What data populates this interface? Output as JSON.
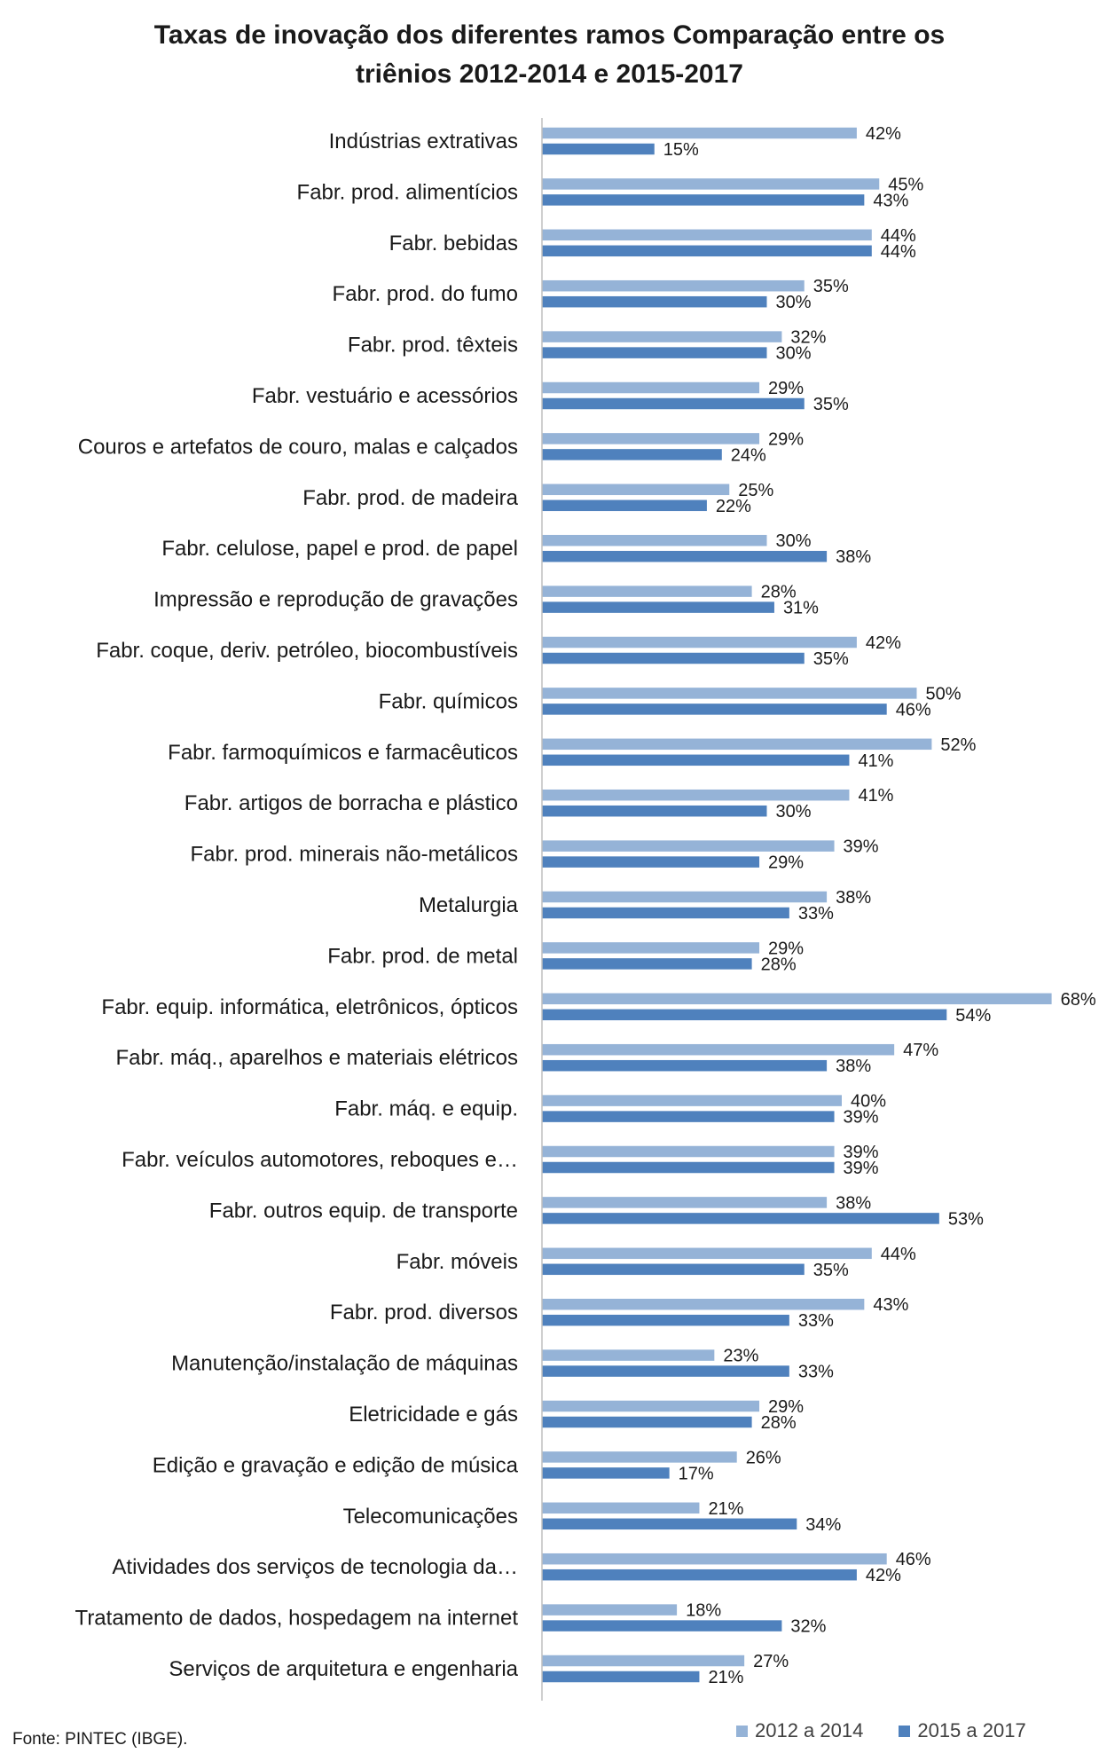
{
  "chart_data": {
    "type": "bar",
    "orientation": "horizontal",
    "title_lines": [
      "Taxas de inovação dos diferentes ramos Comparação entre os",
      "triênios 2012-2014 e 2015-2017"
    ],
    "categories": [
      "Indústrias extrativas",
      "Fabr. prod. alimentícios",
      "Fabr. bebidas",
      "Fabr. prod. do fumo",
      "Fabr. prod. têxteis",
      "Fabr. vestuário e acessórios",
      "Couros e artefatos de couro, malas e calçados",
      "Fabr. prod. de madeira",
      "Fabr. celulose, papel e prod. de papel",
      "Impressão e reprodução de gravações",
      "Fabr. coque, deriv. petróleo, biocombustíveis",
      "Fabr. químicos",
      "Fabr. farmoquímicos e farmacêuticos",
      "Fabr. artigos de borracha e plástico",
      "Fabr. prod. minerais não-metálicos",
      "Metalurgia",
      "Fabr. prod. de metal",
      "Fabr. equip. informática, eletrônicos, ópticos",
      "Fabr. máq., aparelhos e materiais elétricos",
      "Fabr. máq. e equip.",
      "Fabr. veículos automotores, reboques e…",
      "Fabr. outros equip. de transporte",
      "Fabr. móveis",
      "Fabr. prod. diversos",
      "Manutenção/instalação de máquinas",
      "Eletricidade e gás",
      "Edição e gravação e edição de música",
      "Telecomunicações",
      "Atividades dos serviços de tecnologia da…",
      "Tratamento de dados, hospedagem na internet",
      "Serviços de arquitetura e engenharia"
    ],
    "series": [
      {
        "name": "2012 a 2014",
        "color": "#95b3d7",
        "values": [
          42,
          45,
          44,
          35,
          32,
          29,
          29,
          25,
          30,
          28,
          42,
          50,
          52,
          41,
          39,
          38,
          29,
          68,
          47,
          40,
          39,
          38,
          44,
          43,
          23,
          29,
          26,
          21,
          46,
          18,
          27
        ],
        "labels": [
          "42%",
          "45%",
          "44%",
          "35%",
          "32%",
          "29%",
          "29%",
          "25%",
          "30%",
          "28%",
          "42%",
          "50%",
          "52%",
          "41%",
          "39%",
          "38%",
          "29%",
          "68%",
          "47%",
          "40%",
          "39%",
          "38%",
          "44%",
          "43%",
          "23%",
          "29%",
          "26%",
          "21%",
          "46%",
          "18%",
          "27%"
        ]
      },
      {
        "name": "2015 a 2017",
        "color": "#4f81bd",
        "values": [
          15,
          43,
          44,
          30,
          30,
          35,
          24,
          22,
          38,
          31,
          35,
          46,
          41,
          30,
          29,
          33,
          28,
          54,
          38,
          39,
          39,
          53,
          35,
          33,
          33,
          28,
          17,
          34,
          42,
          32,
          21
        ],
        "labels": [
          "15%",
          "43%",
          "44%",
          "30%",
          "30%",
          "35%",
          "24%",
          "22%",
          "38%",
          "31%",
          "35%",
          "46%",
          "41%",
          "30%",
          "29%",
          "33%",
          "28%",
          "54%",
          "38%",
          "39%",
          "39%",
          "53%",
          "35%",
          "33%",
          "33%",
          "28%",
          "17%",
          "34%",
          "42%",
          "32%",
          "21%"
        ]
      }
    ],
    "xlim": [
      0,
      70
    ],
    "grid": false,
    "legend_position": "bottom-right"
  },
  "source": "Fonte: PINTEC (IBGE)."
}
